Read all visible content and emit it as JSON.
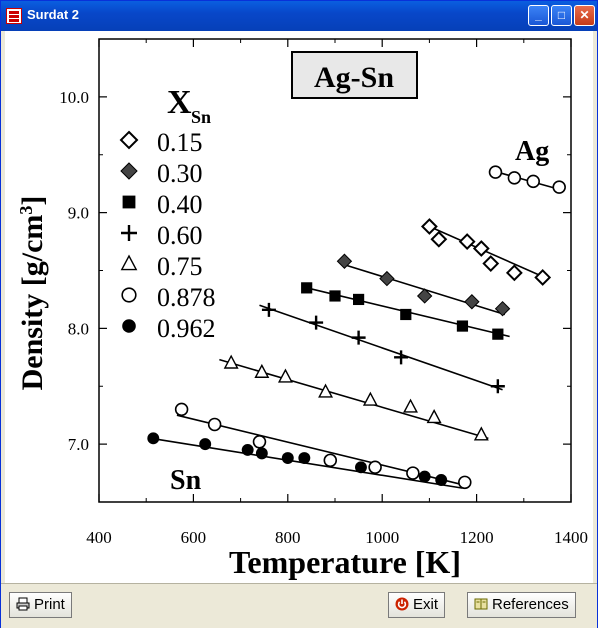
{
  "window": {
    "title": "Surdat 2",
    "icon": "app-icon"
  },
  "titlebar_buttons": [
    "_",
    "□",
    "✕"
  ],
  "buttons": {
    "print": "Print",
    "exit": "Exit",
    "references": "References"
  },
  "colors": {
    "titlebar": "#0847c9",
    "exit_icon": "#cc2200"
  },
  "chart_data": {
    "type": "scatter",
    "title": "Ag-Sn",
    "xlabel": "Temperature [K]",
    "ylabel": "Density [g/cm3]",
    "ylabel_display": [
      "Density [g/cm",
      "3",
      "]"
    ],
    "xlim": [
      400,
      1400
    ],
    "ylim": [
      6.5,
      10.5
    ],
    "xticks": [
      "400",
      "600",
      "800",
      "1000",
      "1200",
      "1400"
    ],
    "yticks": [
      "7.0",
      "8.0",
      "9.0",
      "10.0"
    ],
    "legend_title": "X",
    "legend_subscript": "Sn",
    "legend_placement": "top-left",
    "annotations": [
      "Ag",
      "Sn"
    ],
    "series": [
      {
        "name": "0.15",
        "marker": "open-diamond",
        "x": [
          1100,
          1120,
          1180,
          1210,
          1230,
          1280,
          1340
        ],
        "y": [
          8.88,
          8.77,
          8.75,
          8.69,
          8.56,
          8.48,
          8.44
        ],
        "fit": [
          [
            1100,
            8.88
          ],
          [
            1350,
            8.43
          ]
        ]
      },
      {
        "name": "0.30",
        "marker": "filled-diamond",
        "x": [
          920,
          1010,
          1090,
          1190,
          1255
        ],
        "y": [
          8.58,
          8.43,
          8.28,
          8.23,
          8.17
        ],
        "fit": [
          [
            920,
            8.55
          ],
          [
            1260,
            8.12
          ]
        ]
      },
      {
        "name": "0.40",
        "marker": "filled-square",
        "x": [
          840,
          900,
          950,
          1050,
          1170,
          1245
        ],
        "y": [
          8.35,
          8.28,
          8.25,
          8.12,
          8.02,
          7.95
        ],
        "fit": [
          [
            830,
            8.36
          ],
          [
            1270,
            7.93
          ]
        ]
      },
      {
        "name": "0.60",
        "marker": "plus",
        "x": [
          760,
          860,
          950,
          1040,
          1245
        ],
        "y": [
          8.16,
          8.05,
          7.92,
          7.75,
          7.5
        ],
        "fit": [
          [
            740,
            8.2
          ],
          [
            1255,
            7.47
          ]
        ]
      },
      {
        "name": "0.75",
        "marker": "open-triangle",
        "x": [
          680,
          745,
          795,
          880,
          975,
          1060,
          1110,
          1210
        ],
        "y": [
          7.7,
          7.62,
          7.58,
          7.45,
          7.38,
          7.32,
          7.23,
          7.08
        ],
        "fit": [
          [
            655,
            7.73
          ],
          [
            1225,
            7.05
          ]
        ]
      },
      {
        "name": "0.878",
        "marker": "open-circle",
        "x": [
          575,
          645,
          740,
          890,
          985,
          1065,
          1175
        ],
        "y": [
          7.3,
          7.17,
          7.02,
          6.86,
          6.8,
          6.75,
          6.67
        ],
        "fit": [
          [
            565,
            7.25
          ],
          [
            1180,
            6.64
          ]
        ]
      },
      {
        "name": "0.962",
        "marker": "filled-circle",
        "x": [
          515,
          625,
          715,
          745,
          800,
          835,
          955,
          1090,
          1125
        ],
        "y": [
          7.05,
          7.0,
          6.95,
          6.92,
          6.88,
          6.88,
          6.8,
          6.72,
          6.69
        ],
        "fit": [
          [
            510,
            7.05
          ],
          [
            1170,
            6.62
          ]
        ]
      },
      {
        "name": "Ag",
        "marker": "open-circle",
        "x": [
          1240,
          1280,
          1320,
          1375
        ],
        "y": [
          9.35,
          9.3,
          9.27,
          9.22
        ],
        "fit": [
          [
            1235,
            9.36
          ],
          [
            1385,
            9.19
          ]
        ]
      }
    ]
  }
}
